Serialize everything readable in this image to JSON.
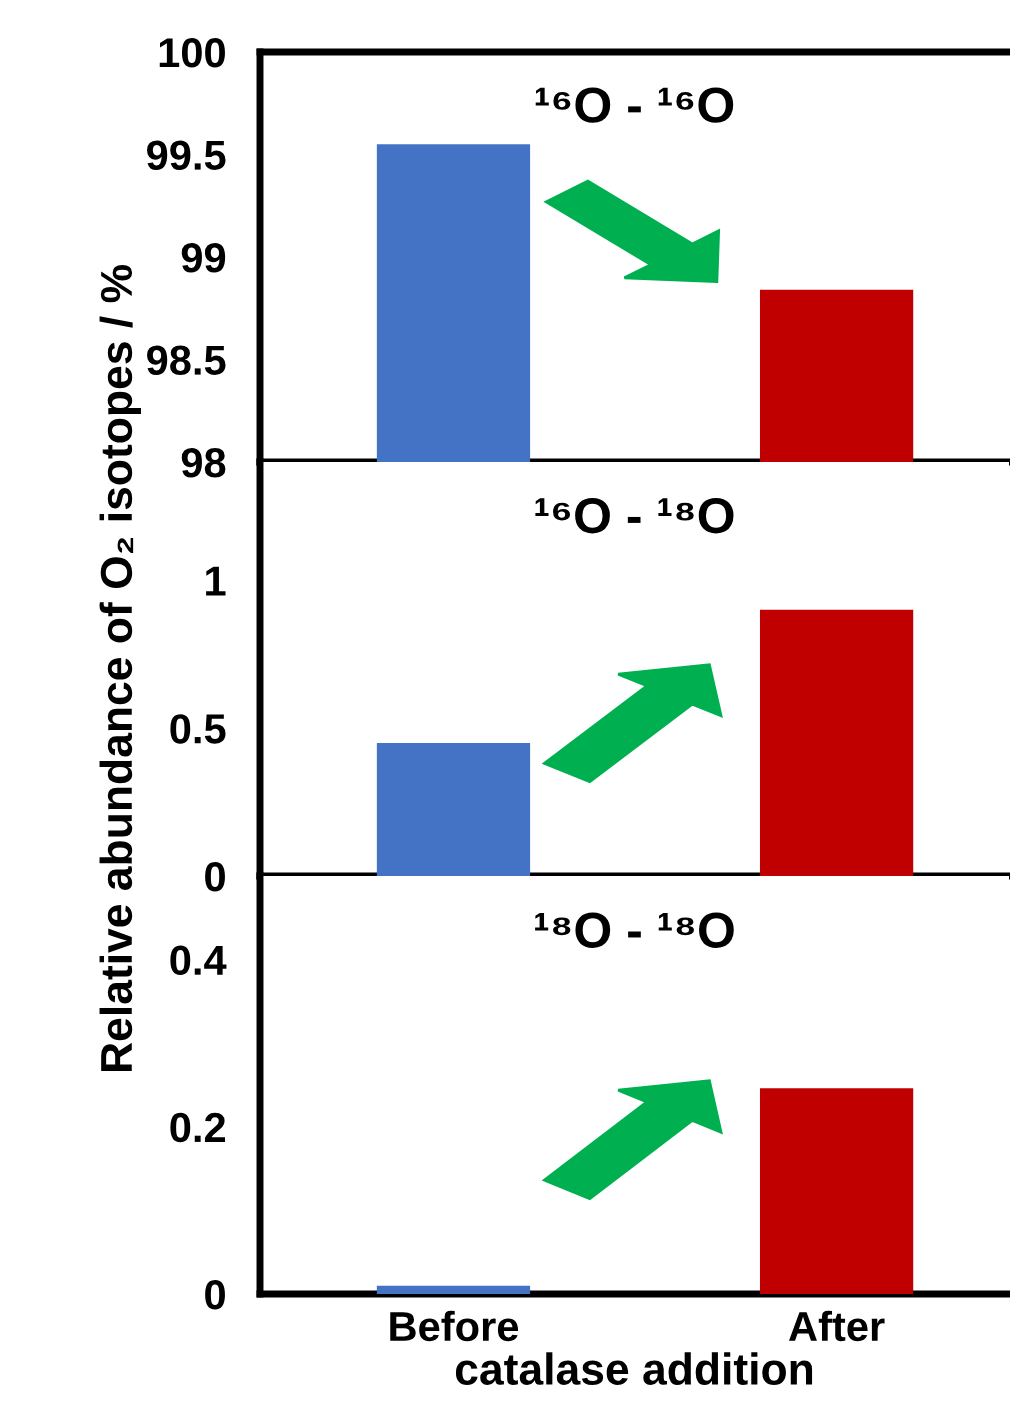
{
  "chart_data": [
    {
      "type": "bar",
      "title": "¹⁶O - ¹⁶O",
      "categories": [
        null,
        null
      ],
      "values": [
        99.55,
        98.84
      ],
      "colors": [
        "#4472c4",
        "#c00000"
      ],
      "ylim": [
        98,
        100
      ],
      "yticks": [
        98,
        98.5,
        99,
        99.5,
        100
      ],
      "tick_labels": "y"
    },
    {
      "type": "bar",
      "title": "¹⁶O - ¹⁸O",
      "ylabel": "Relative abundance of O₂ isotopes / %",
      "categories": [
        null,
        null
      ],
      "values": [
        0.45,
        0.9
      ],
      "colors": [
        "#4472c4",
        "#c00000"
      ],
      "ylim": [
        0,
        1.4
      ],
      "yticks": [
        0,
        0.5,
        1
      ],
      "tick_labels": "y"
    },
    {
      "type": "bar",
      "title": "¹⁸O - ¹⁸O",
      "xlabel": "catalase addition",
      "categories": [
        "Before",
        "After"
      ],
      "values": [
        0.01,
        0.246
      ],
      "colors": [
        "#4472c4",
        "#c00000"
      ],
      "ylim": [
        0,
        0.5
      ],
      "yticks": [
        0,
        0.2,
        0.4
      ]
    }
  ]
}
